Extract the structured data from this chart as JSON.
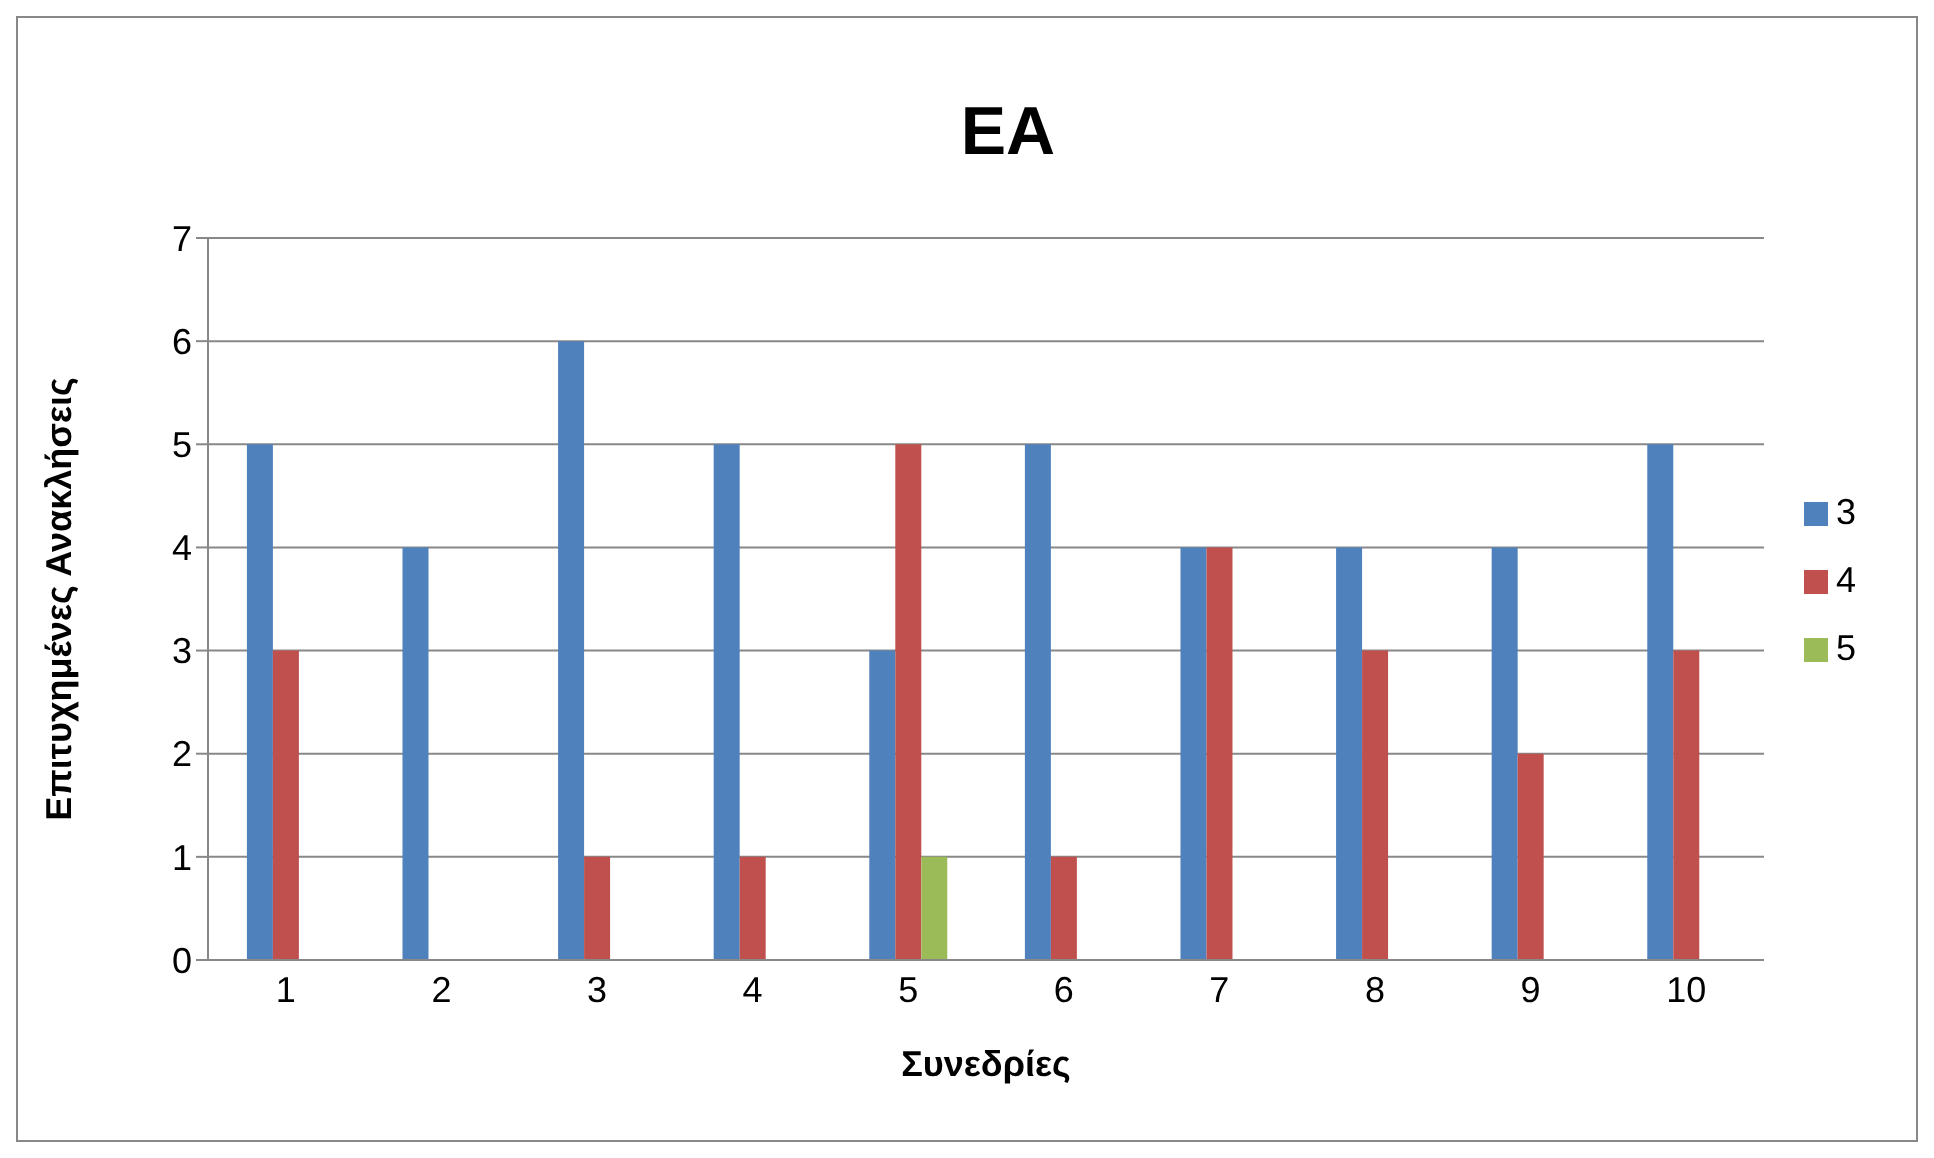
{
  "chart_data": {
    "type": "bar",
    "title": "EA",
    "xlabel": "Συνεδρίες",
    "ylabel": "Επιτυχημένες Ανακλήσεις",
    "categories": [
      "1",
      "2",
      "3",
      "4",
      "5",
      "6",
      "7",
      "8",
      "9",
      "10"
    ],
    "series": [
      {
        "name": "3",
        "color": "#4f81bd",
        "values": [
          5,
          4,
          6,
          5,
          3,
          5,
          4,
          4,
          4,
          5
        ]
      },
      {
        "name": "4",
        "color": "#c0504d",
        "values": [
          3,
          0,
          1,
          1,
          5,
          1,
          4,
          3,
          2,
          3
        ]
      },
      {
        "name": "5",
        "color": "#9bbb59",
        "values": [
          0,
          0,
          0,
          0,
          1,
          0,
          0,
          0,
          0,
          0
        ]
      }
    ],
    "ylim": [
      0,
      7
    ],
    "yticks": [
      0,
      1,
      2,
      3,
      4,
      5,
      6,
      7
    ],
    "grid": "y",
    "legend": "right"
  }
}
